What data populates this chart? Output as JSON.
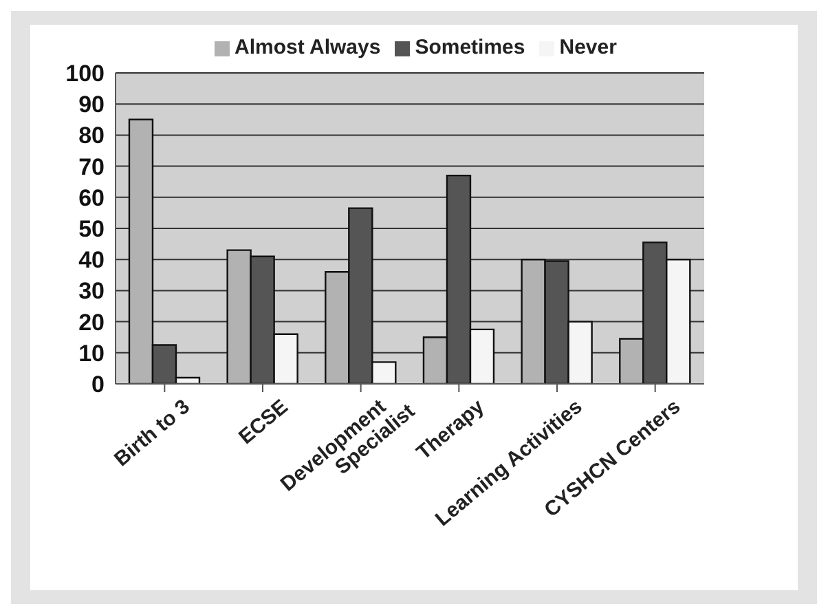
{
  "chart_data": {
    "type": "bar",
    "categories": [
      "Birth to 3",
      "ECSE",
      "Development Specialist",
      "Therapy",
      "Learning Activities",
      "CYSHCN Centers"
    ],
    "series": [
      {
        "name": "Almost Always",
        "color": "#b2b2b2",
        "values": [
          85,
          43,
          36,
          15,
          40,
          14.5
        ]
      },
      {
        "name": "Sometimes",
        "color": "#555555",
        "values": [
          12.5,
          41,
          56.5,
          67,
          39.5,
          45.5
        ]
      },
      {
        "name": "Never",
        "color": "#f5f5f5",
        "values": [
          2,
          16,
          7,
          17.5,
          20,
          40
        ]
      }
    ],
    "ylim": [
      0,
      100
    ],
    "yticks": [
      0,
      10,
      20,
      30,
      40,
      50,
      60,
      70,
      80,
      90,
      100
    ],
    "grid": "y",
    "legend": "top"
  }
}
